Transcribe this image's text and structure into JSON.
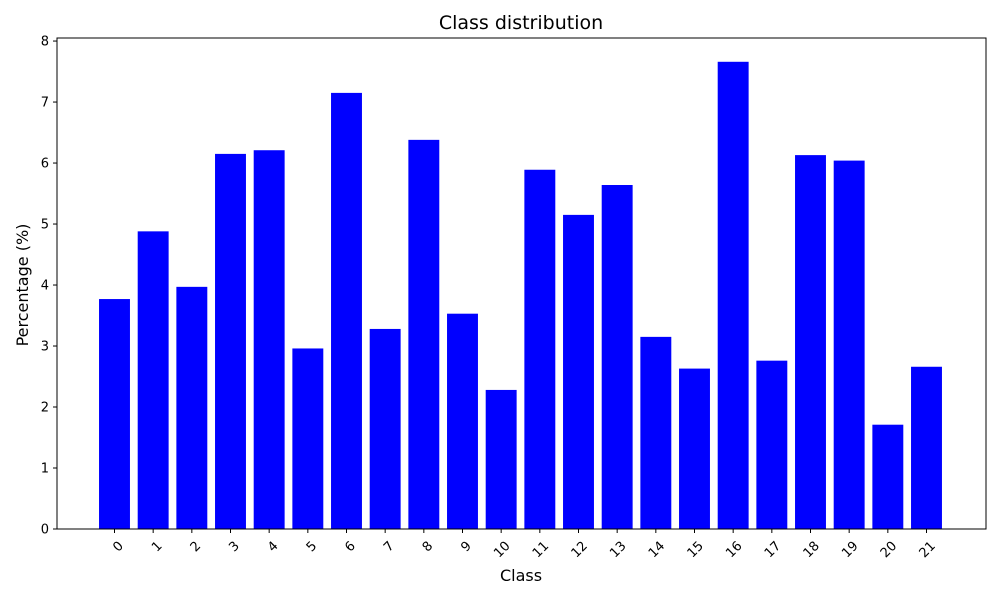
{
  "chart_data": {
    "type": "bar",
    "title": "Class distribution",
    "xlabel": "Class",
    "ylabel": "Percentage (%)",
    "categories": [
      "0",
      "1",
      "2",
      "3",
      "4",
      "5",
      "6",
      "7",
      "8",
      "9",
      "10",
      "11",
      "12",
      "13",
      "14",
      "15",
      "16",
      "17",
      "18",
      "19",
      "20",
      "21"
    ],
    "values": [
      3.77,
      4.88,
      3.97,
      6.15,
      6.21,
      2.96,
      7.15,
      3.28,
      6.38,
      3.53,
      2.28,
      5.89,
      5.15,
      5.64,
      3.15,
      2.63,
      7.66,
      2.76,
      6.13,
      6.04,
      1.71,
      2.66
    ],
    "ylim": [
      0,
      8.05
    ],
    "yticks": [
      0,
      1,
      2,
      3,
      4,
      5,
      6,
      7,
      8
    ],
    "bar_color": "#0000ff",
    "grid": false,
    "legend": "none"
  }
}
